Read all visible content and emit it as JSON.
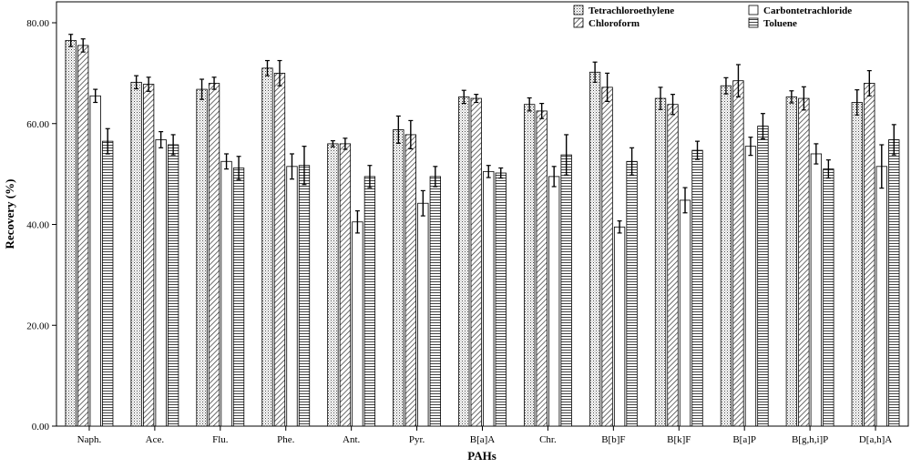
{
  "chart_data": {
    "type": "bar",
    "xlabel": "PAHs",
    "ylabel": "Recovery (%)",
    "ylim": [
      0,
      80
    ],
    "yticks": [
      "0.00",
      "20.00",
      "40.00",
      "60.00",
      "80.00"
    ],
    "grid": false,
    "legend_position": "top-right",
    "categories": [
      "Naph.",
      "Ace.",
      "Flu.",
      "Phe.",
      "Ant.",
      "Pyr.",
      "B[a]A",
      "Chr.",
      "B[b]F",
      "B[k]F",
      "B[a]P",
      "B[g,h,i]P",
      "D[a,h]A"
    ],
    "series": [
      {
        "name": "Tetrachloroethylene",
        "pattern": "dots",
        "values": [
          76.5,
          68.2,
          66.8,
          71.0,
          56.0,
          58.8,
          65.3,
          63.8,
          70.2,
          65.0,
          67.5,
          65.3,
          64.2
        ],
        "errors": [
          1.2,
          1.3,
          2.0,
          1.5,
          0.6,
          2.7,
          1.3,
          1.3,
          2.0,
          2.2,
          1.6,
          1.2,
          2.5
        ]
      },
      {
        "name": "Chloroform",
        "pattern": "diagonal",
        "values": [
          75.5,
          67.8,
          68.0,
          70.0,
          56.0,
          57.8,
          65.0,
          62.5,
          67.2,
          63.8,
          68.5,
          65.0,
          68.0
        ],
        "errors": [
          1.3,
          1.4,
          1.2,
          2.5,
          1.1,
          2.8,
          0.8,
          1.5,
          2.8,
          2.0,
          3.2,
          2.3,
          2.5
        ]
      },
      {
        "name": "Carbontetrachloride",
        "pattern": "none",
        "values": [
          65.5,
          56.8,
          52.5,
          51.5,
          40.5,
          44.2,
          50.5,
          49.5,
          39.5,
          44.8,
          55.5,
          54.0,
          51.5
        ],
        "errors": [
          1.3,
          1.6,
          1.5,
          2.5,
          2.2,
          2.5,
          1.2,
          2.0,
          1.2,
          2.5,
          1.8,
          2.0,
          4.3
        ]
      },
      {
        "name": "Toluene",
        "pattern": "horizontal",
        "values": [
          56.5,
          55.8,
          51.2,
          51.7,
          49.5,
          49.5,
          50.2,
          53.8,
          52.5,
          54.7,
          59.5,
          51.0,
          56.8
        ],
        "errors": [
          2.5,
          2.0,
          2.3,
          3.8,
          2.2,
          2.0,
          1.0,
          4.0,
          2.7,
          1.8,
          2.5,
          1.8,
          3.0
        ]
      }
    ]
  }
}
